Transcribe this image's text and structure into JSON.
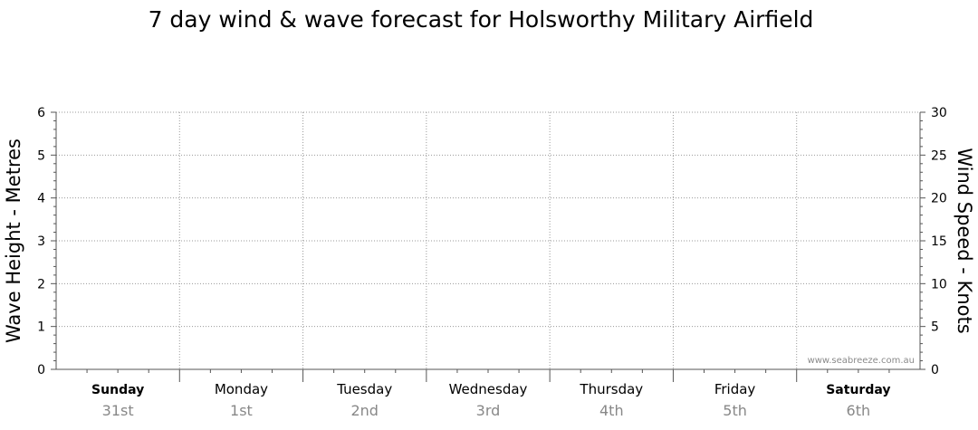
{
  "chart_data": {
    "type": "line",
    "title": "7 day wind & wave forecast for Holsworthy Military Airfield",
    "y_left": {
      "label": "Wave Height - Metres",
      "range": [
        0,
        6
      ],
      "ticks": [
        "0",
        "1",
        "2",
        "3",
        "4",
        "5",
        "6"
      ]
    },
    "y_right": {
      "label": "Wind Speed - Knots",
      "range": [
        0,
        30
      ],
      "ticks": [
        "0",
        "5",
        "10",
        "15",
        "20",
        "25",
        "30"
      ]
    },
    "days": [
      {
        "name": "Sunday",
        "date": "31st",
        "bold": true
      },
      {
        "name": "Monday",
        "date": "1st",
        "bold": false
      },
      {
        "name": "Tuesday",
        "date": "2nd",
        "bold": false
      },
      {
        "name": "Wednesday",
        "date": "3rd",
        "bold": false
      },
      {
        "name": "Thursday",
        "date": "4th",
        "bold": false
      },
      {
        "name": "Friday",
        "date": "5th",
        "bold": false
      },
      {
        "name": "Saturday",
        "date": "6th",
        "bold": true
      }
    ],
    "series": [],
    "grid": true
  },
  "watermark": "www.seabreeze.com.au",
  "colors": {
    "grid": "#9a9a9a",
    "axis": "#555555",
    "date_text": "#888888"
  }
}
